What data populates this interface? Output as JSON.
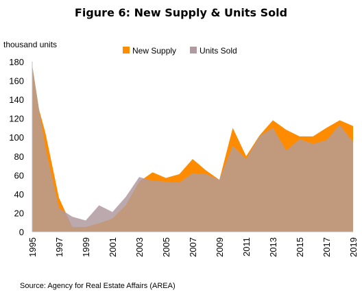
{
  "chart_data": {
    "type": "area",
    "title": "Figure 6: New Supply & Units Sold",
    "ylabel": "thousand units",
    "xlabel": "",
    "ylim": [
      0,
      180
    ],
    "yticks": [
      0,
      20,
      40,
      60,
      80,
      100,
      120,
      140,
      160,
      180
    ],
    "xlim": [
      1995,
      2019
    ],
    "xticks": [
      1995,
      1997,
      1999,
      2001,
      2003,
      2005,
      2007,
      2009,
      2011,
      2013,
      2015,
      2017,
      2019
    ],
    "legend_position": "top-center",
    "grid": false,
    "x": [
      1995,
      1995.5,
      1996,
      1997,
      1998,
      1999,
      2000,
      2001,
      2002,
      2003,
      2004,
      2005,
      2006,
      2007,
      2008,
      2009,
      2010,
      2011,
      2012,
      2013,
      2014,
      2015,
      2016,
      2017,
      2018,
      2019
    ],
    "series": [
      {
        "name": "New Supply",
        "color": "#FF8C00",
        "values": [
          176,
          130,
          104,
          36,
          5,
          5,
          9,
          14,
          28,
          53,
          63,
          57,
          61,
          77,
          65,
          55,
          110,
          80,
          102,
          118,
          108,
          101,
          101,
          110,
          118,
          112
        ]
      },
      {
        "name": "Units Sold",
        "color": "#B09AA0",
        "values": [
          176,
          130,
          88,
          25,
          16,
          12,
          28,
          21,
          37,
          58,
          54,
          53,
          52,
          62,
          61,
          55,
          91,
          77,
          101,
          110,
          86,
          98,
          93,
          97,
          113,
          95
        ]
      }
    ],
    "overlap_color": "#C19A7D"
  },
  "source": "Source: Agency for Real Estate Affairs (AREA)"
}
